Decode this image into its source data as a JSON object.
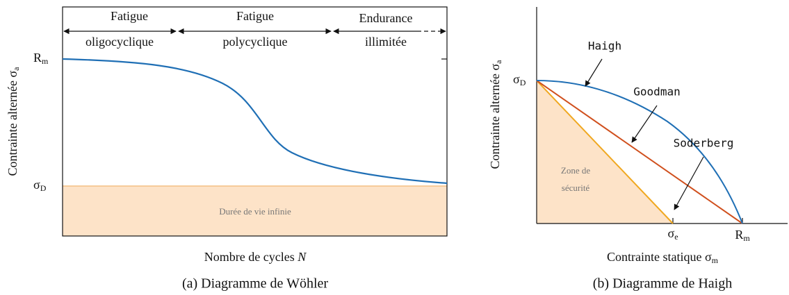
{
  "wohler": {
    "regions": [
      {
        "line1": "Fatigue",
        "line2": "oligocyclique"
      },
      {
        "line1": "Fatigue",
        "line2": "polycyclique"
      },
      {
        "line1": "Endurance",
        "line2": "illimitée"
      }
    ],
    "y_label": {
      "text": "Contrainte alternée σ",
      "sub": "a"
    },
    "rm_label": {
      "text": "R",
      "sub": "m"
    },
    "sigma_d_label": {
      "text": "σ",
      "sub": "D"
    },
    "zone": "Durée de vie infinie",
    "x_label": {
      "text": "Nombre de cycles ",
      "var": "N"
    },
    "caption": "(a) Diagramme de Wöhler"
  },
  "haigh": {
    "y_label": {
      "text": "Contrainte alternée σ",
      "sub": "a"
    },
    "sigma_d_label": {
      "text": "σ",
      "sub": "D"
    },
    "curves": {
      "haigh": "Haigh",
      "goodman": "Goodman",
      "soderberg": "Soderberg"
    },
    "zone": {
      "line1": "Zone de",
      "line2": "sécurité"
    },
    "sigma_e_label": {
      "text": "σ",
      "sub": "e"
    },
    "rm_label": {
      "text": "R",
      "sub": "m"
    },
    "x_label": {
      "text": "Contrainte statique σ",
      "sub": "m"
    },
    "caption": "(b) Diagramme de Haigh"
  }
}
